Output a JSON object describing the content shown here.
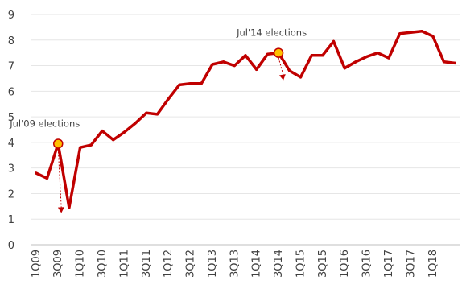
{
  "chart_data": {
    "type": "line",
    "ylim": [
      0,
      9
    ],
    "yticks": [
      "0",
      "1",
      "2",
      "3",
      "4",
      "5",
      "6",
      "7",
      "8",
      "9"
    ],
    "grid": true,
    "x": [
      "1Q09",
      "2Q09",
      "3Q09",
      "4Q09",
      "1Q10",
      "2Q10",
      "3Q10",
      "4Q10",
      "1Q11",
      "2Q11",
      "3Q11",
      "4Q11",
      "1Q12",
      "2Q12",
      "3Q12",
      "4Q12",
      "1Q13",
      "2Q13",
      "3Q13",
      "4Q13",
      "1Q14",
      "2Q14",
      "3Q14",
      "4Q14",
      "1Q15",
      "2Q15",
      "3Q15",
      "4Q15",
      "1Q16",
      "2Q16",
      "3Q16",
      "4Q16",
      "1Q17",
      "2Q17",
      "3Q17",
      "4Q17",
      "1Q18",
      "2Q18",
      "3Q18"
    ],
    "xtick_labels": [
      "1Q09",
      "3Q09",
      "1Q10",
      "3Q10",
      "1Q11",
      "3Q11",
      "1Q12",
      "3Q12",
      "1Q13",
      "3Q13",
      "1Q14",
      "3Q14",
      "1Q15",
      "3Q15",
      "1Q16",
      "3Q16",
      "1Q17",
      "3Q17",
      "1Q18"
    ],
    "series": [
      {
        "color": "#c00000",
        "values": [
          2.8,
          2.6,
          3.95,
          1.45,
          3.8,
          3.9,
          4.45,
          4.1,
          4.4,
          4.75,
          5.15,
          5.1,
          5.7,
          6.25,
          6.3,
          6.3,
          7.05,
          7.15,
          7.0,
          7.4,
          6.85,
          7.45,
          7.5,
          6.8,
          6.55,
          7.4,
          7.4,
          7.95,
          6.9,
          7.15,
          7.35,
          7.5,
          7.3,
          8.25,
          8.3,
          8.35,
          8.15,
          7.15,
          7.1
        ]
      }
    ],
    "annotations": [
      {
        "text": "Jul'09 elections",
        "x": "3Q09",
        "y": 3.95,
        "marker_color": "#ffc000"
      },
      {
        "text": "Jul'14 elections",
        "x": "3Q14",
        "y": 7.5,
        "marker_color": "#ffc000"
      }
    ]
  }
}
